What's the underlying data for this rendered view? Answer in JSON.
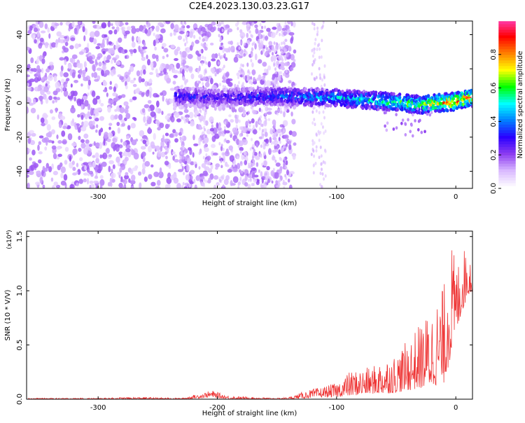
{
  "figure": {
    "title": "C2E4.2023.130.03.23.G17"
  },
  "chart_data": [
    {
      "type": "heatmap",
      "title": "C2E4.2023.130.03.23.G17",
      "xlabel": "Height of straight line (km)",
      "ylabel": "Frequency (Hz)",
      "xlim": [
        -360,
        14
      ],
      "ylim": [
        -50,
        48
      ],
      "x_ticks": [
        -300,
        -200,
        -100,
        0
      ],
      "y_ticks": [
        -40,
        -20,
        0,
        20,
        40
      ],
      "grid": false,
      "colorbar": {
        "label": "Normalized spectral amplitude",
        "range": [
          0,
          1
        ],
        "ticks": [
          0.0,
          0.2,
          0.4,
          0.6,
          0.8
        ],
        "colormap": [
          "#ffffff",
          "#d9b8ff",
          "#8c3cf0",
          "#2a00ff",
          "#0080ff",
          "#00ffff",
          "#00ff00",
          "#ffff00",
          "#ff8000",
          "#ff0000",
          "#ff3cb4"
        ]
      },
      "regions": [
        {
          "x_range": [
            -360,
            -235
          ],
          "description": "scattered noise, amplitude 0.05-0.15"
        },
        {
          "x_range": [
            -235,
            -140
          ],
          "description": "signal band near 4 Hz with weak noise"
        },
        {
          "x_range": [
            -140,
            14
          ],
          "description": "strong signal band near 0 Hz, amplitude up to 1.0"
        }
      ],
      "signal_band": {
        "x": [
          -235,
          -200,
          -150,
          -100,
          -60,
          -30,
          0,
          14
        ],
        "center_hz": [
          4,
          3,
          4,
          3,
          1,
          -1,
          1,
          3
        ],
        "peak_amplitude": [
          0.35,
          0.3,
          0.4,
          0.5,
          0.6,
          0.7,
          0.95,
          0.85
        ]
      }
    },
    {
      "type": "line",
      "xlabel": "Height of straight line (km)",
      "ylabel": "SNR (10 * V/V)",
      "y_multiplier": "(x10⁴)",
      "xlim": [
        -360,
        14
      ],
      "ylim": [
        0,
        1.55
      ],
      "x_ticks": [
        -300,
        -200,
        -100,
        0
      ],
      "y_ticks": [
        0.0,
        0.5,
        1.0,
        1.5
      ],
      "grid": false,
      "series": [
        {
          "color": "#ee3333",
          "x": [
            -360,
            -300,
            -270,
            -230,
            -215,
            -205,
            -190,
            -150,
            -140,
            -125,
            -110,
            -100,
            -90,
            -80,
            -70,
            -60,
            -50,
            -40,
            -30,
            -20,
            -10,
            -5,
            0,
            5,
            10,
            14
          ],
          "y": [
            0.01,
            0.01,
            0.02,
            0.01,
            0.05,
            0.08,
            0.03,
            0.01,
            0.02,
            0.08,
            0.12,
            0.15,
            0.25,
            0.28,
            0.3,
            0.38,
            0.42,
            0.55,
            0.7,
            0.85,
            1.05,
            1.55,
            1.25,
            1.35,
            1.45,
            1.2
          ],
          "ymin": [
            0.0,
            0.0,
            0.0,
            0.0,
            0.01,
            0.02,
            0.0,
            0.0,
            0.0,
            0.01,
            0.02,
            0.02,
            0.03,
            0.04,
            0.05,
            0.05,
            0.06,
            0.08,
            0.1,
            0.12,
            0.15,
            0.35,
            0.6,
            0.8,
            0.95,
            1.0
          ]
        }
      ]
    }
  ]
}
